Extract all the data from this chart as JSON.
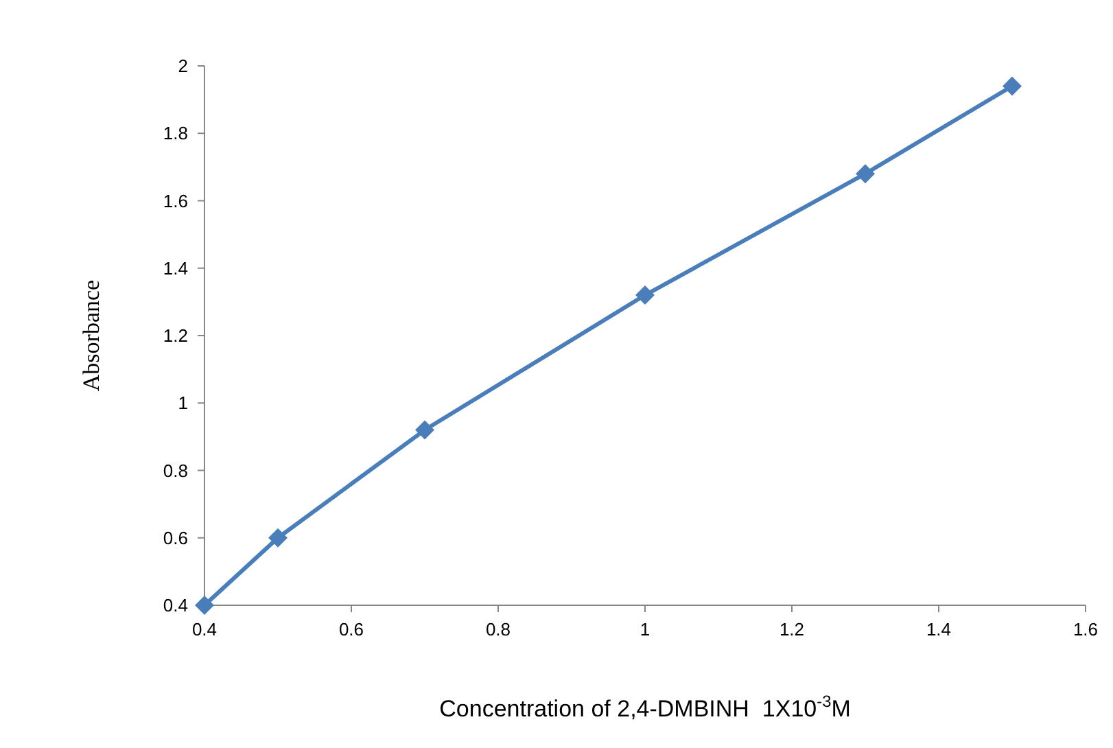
{
  "chart_data": {
    "type": "line",
    "xlabel": "Concentration of 2,4-DMBINH  1X10$^{-3}$M",
    "ylabel": "Absorbance",
    "x": [
      0.4,
      0.5,
      0.7,
      1.0,
      1.3,
      1.5
    ],
    "series": [
      {
        "color": "#4a7ebb",
        "values": [
          0.4,
          0.6,
          0.92,
          1.32,
          1.68,
          1.94
        ]
      }
    ],
    "xlim": [
      0.4,
      1.6
    ],
    "xticks": [
      0.4,
      0.6,
      0.8,
      1,
      1.2,
      1.4,
      1.6
    ],
    "ylim": [
      0.4,
      2
    ],
    "yticks": [
      0.4,
      0.6,
      0.8,
      1,
      1.2,
      1.4,
      1.6,
      1.8,
      2
    ],
    "grid": false,
    "marker": "diamond",
    "line_style": "solid"
  }
}
